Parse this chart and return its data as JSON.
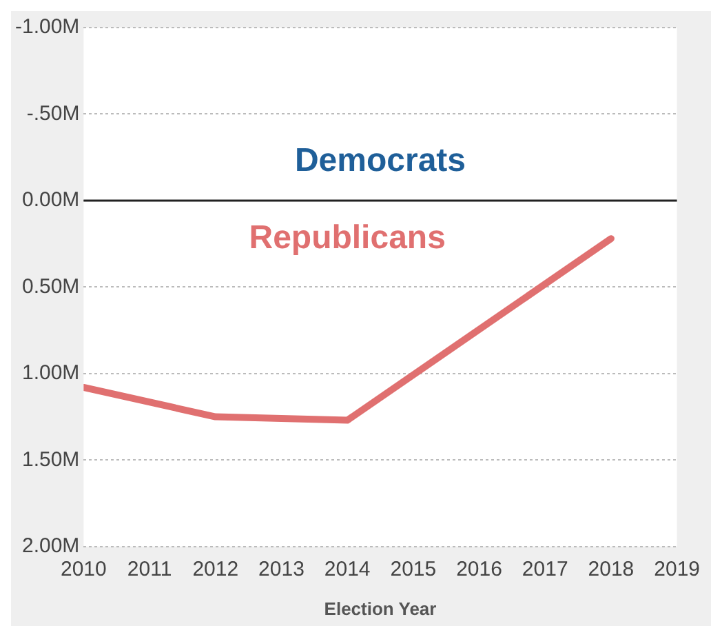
{
  "chart_data": {
    "type": "line",
    "x": [
      2010,
      2012,
      2014,
      2018
    ],
    "series": [
      {
        "name": "Republicans",
        "color": "#e07070",
        "values": [
          1.08,
          1.25,
          1.27,
          0.22
        ]
      }
    ],
    "xlabel": "Election Year",
    "xlim": [
      2010,
      2019
    ],
    "xticks": [
      2010,
      2011,
      2012,
      2013,
      2014,
      2015,
      2016,
      2017,
      2018,
      2019
    ],
    "ylim": [
      2,
      -1
    ],
    "yticks": [
      {
        "value": -1,
        "label": "-1.00M"
      },
      {
        "value": -0.5,
        "label": "-.50M"
      },
      {
        "value": 0,
        "label": "0.00M"
      },
      {
        "value": 0.5,
        "label": "0.50M"
      },
      {
        "value": 1,
        "label": "1.00M"
      },
      {
        "value": 1.5,
        "label": "1.50M"
      },
      {
        "value": 2,
        "label": "2.00M"
      }
    ],
    "annotations": [
      "Democrats"
    ],
    "ref_lines": [
      {
        "axis": "y",
        "value": 0,
        "color": "#222222"
      }
    ],
    "grid": "y",
    "legend": false,
    "marker": "none",
    "line_style": "solid"
  }
}
